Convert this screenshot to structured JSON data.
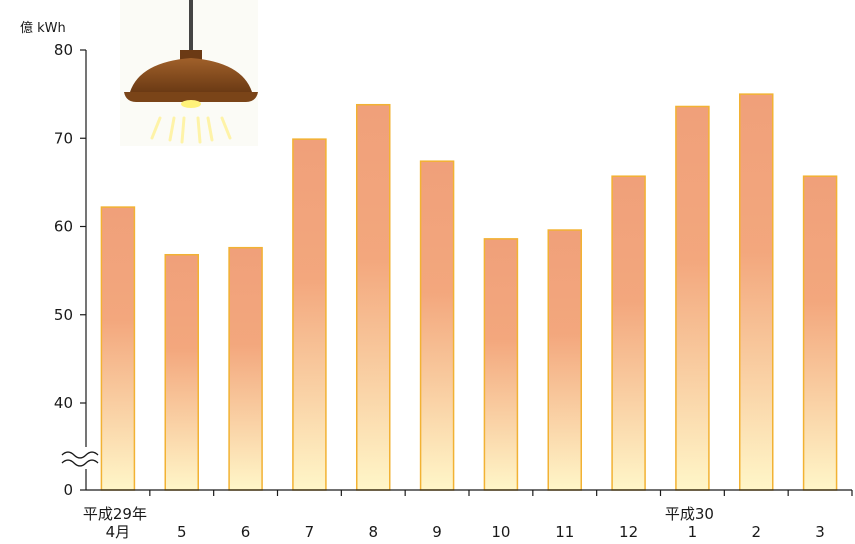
{
  "chart_data": {
    "type": "bar",
    "ylabel": "億 kWh",
    "yticks": [
      0,
      40,
      50,
      60,
      70,
      80
    ],
    "axis_break": [
      0,
      35
    ],
    "ylim": [
      35,
      80
    ],
    "categories": [
      "4月",
      "5",
      "6",
      "7",
      "8",
      "9",
      "10",
      "11",
      "12",
      "1",
      "2",
      "3"
    ],
    "era_labels": {
      "0": "平成29年",
      "9": "平成30"
    },
    "values": [
      62.2,
      56.8,
      57.6,
      69.9,
      73.8,
      67.4,
      58.6,
      59.6,
      65.7,
      73.6,
      75.0,
      65.7
    ],
    "colors": {
      "bar_top": "#f0a07a",
      "bar_bottom": "#fff6c8",
      "bar_stroke": "#f2b233"
    },
    "decoration": "pendant-lamp-icon"
  }
}
